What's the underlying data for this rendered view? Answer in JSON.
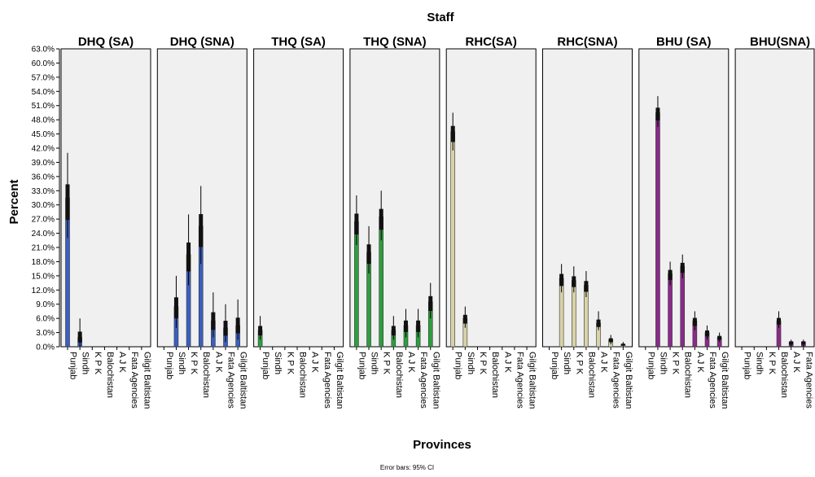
{
  "chart_data": {
    "type": "bar",
    "title": "Staff",
    "xlabel": "Provinces",
    "ylabel": "Percent",
    "footnote": "Error bars: 95% CI",
    "ylim": [
      0,
      63
    ],
    "yticks": [
      "0.0%",
      "3.0%",
      "6.0%",
      "9.0%",
      "12.0%",
      "15.0%",
      "18.0%",
      "21.0%",
      "24.0%",
      "27.0%",
      "30.0%",
      "33.0%",
      "36.0%",
      "39.0%",
      "42.0%",
      "45.0%",
      "48.0%",
      "51.0%",
      "54.0%",
      "57.0%",
      "60.0%",
      "63.0%"
    ],
    "categories": [
      "Punjab",
      "Sindh",
      "K P K",
      "Balochistan",
      "A J K",
      "Fata Agencies",
      "Gilgit Baltistan"
    ],
    "panels": [
      {
        "name": "DHQ (SA)",
        "color": "#3b5fc0",
        "values": [
          31.5,
          2.0,
          null,
          null,
          null,
          null,
          null
        ],
        "ci_low": [
          23.0,
          0.0,
          null,
          null,
          null,
          null,
          null
        ],
        "ci_high": [
          41.0,
          6.0,
          null,
          null,
          null,
          null,
          null
        ]
      },
      {
        "name": "DHQ (SNA)",
        "color": "#3b5fc0",
        "values": [
          null,
          8.5,
          19.5,
          25.5,
          5.5,
          4.0,
          4.5
        ],
        "ci_low": [
          null,
          4.0,
          13.0,
          17.5,
          2.0,
          1.0,
          1.5
        ],
        "ci_high": [
          null,
          15.0,
          28.0,
          34.0,
          11.5,
          9.0,
          10.0
        ]
      },
      {
        "name": "THQ (SA)",
        "color": "#2e9e3e",
        "values": [
          3.5,
          null,
          null,
          null,
          null,
          null,
          null
        ],
        "ci_low": [
          1.5,
          null,
          null,
          null,
          null,
          null,
          null
        ],
        "ci_high": [
          6.5,
          null,
          null,
          null,
          null,
          null,
          null
        ]
      },
      {
        "name": "THQ (SNA)",
        "color": "#2e9e3e",
        "values": [
          26.5,
          20.0,
          27.5,
          3.5,
          4.5,
          4.5,
          9.5
        ],
        "ci_low": [
          21.5,
          15.5,
          22.5,
          1.5,
          2.0,
          2.0,
          6.0
        ],
        "ci_high": [
          32.0,
          25.5,
          33.0,
          6.5,
          8.0,
          8.0,
          13.5
        ]
      },
      {
        "name": "RHC(SA)",
        "color": "#d8d3a8",
        "values": [
          45.5,
          6.0,
          null,
          null,
          null,
          null,
          null
        ],
        "ci_low": [
          41.5,
          4.0,
          null,
          null,
          null,
          null,
          null
        ],
        "ci_high": [
          49.5,
          8.5,
          null,
          null,
          null,
          null,
          null
        ]
      },
      {
        "name": "RHC(SNA)",
        "color": "#d8d3a8",
        "values": [
          null,
          14.5,
          14.0,
          13.0,
          5.0,
          1.5,
          0.5
        ],
        "ci_low": [
          null,
          11.5,
          11.5,
          10.5,
          3.5,
          0.5,
          0.0
        ],
        "ci_high": [
          null,
          17.5,
          17.0,
          16.0,
          7.5,
          2.5,
          1.0
        ]
      },
      {
        "name": "BHU (SA)",
        "color": "#8a2a8a",
        "values": [
          null,
          49.5,
          15.5,
          17.0,
          5.5,
          3.0,
          2.0
        ],
        "ci_low": [
          null,
          46.5,
          13.0,
          14.5,
          3.5,
          1.5,
          1.0
        ],
        "ci_high": [
          null,
          53.0,
          18.0,
          19.5,
          7.5,
          4.5,
          3.0
        ]
      },
      {
        "name": "BHU(SNA)",
        "color": "#8a2a8a",
        "values": [
          null,
          null,
          null,
          5.5,
          1.0,
          1.0,
          null
        ],
        "ci_low": [
          null,
          null,
          null,
          4.0,
          0.0,
          0.0,
          null
        ],
        "ci_high": [
          null,
          null,
          null,
          7.5,
          1.5,
          1.5,
          null
        ]
      }
    ],
    "grid": false,
    "panel_background": "#f0f0f0",
    "error_bar_color": "#000000"
  }
}
